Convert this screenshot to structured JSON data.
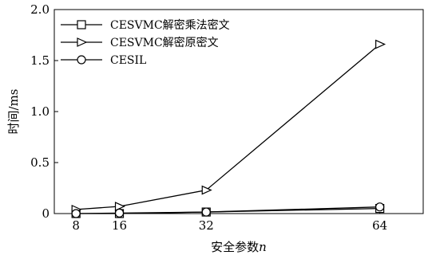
{
  "chart_data": {
    "type": "line",
    "title": "",
    "xlabel": "安全参数",
    "xlabel_var": "n",
    "ylabel": "时间/ms",
    "x": [
      8,
      16,
      32,
      64
    ],
    "xlim": [
      4,
      72
    ],
    "ylim": [
      0,
      2.0
    ],
    "xticks": [
      "8",
      "16",
      "32",
      "64"
    ],
    "yticks": [
      "0",
      "0.5",
      "1.0",
      "1.5",
      "2.0"
    ],
    "grid": false,
    "legend_position": "top-left",
    "series": [
      {
        "name": "CESVMC解密乘法密文",
        "marker": "square",
        "values": [
          0.0,
          0.0,
          0.015,
          0.05
        ]
      },
      {
        "name": "CESVMC解密原密文",
        "marker": "triangle-right",
        "values": [
          0.04,
          0.07,
          0.23,
          1.66
        ]
      },
      {
        "name": "CESIL",
        "marker": "circle",
        "values": [
          0.0,
          0.005,
          0.015,
          0.065
        ]
      }
    ],
    "colors": {
      "line": "#000000",
      "marker_fill": "#ffffff"
    }
  }
}
